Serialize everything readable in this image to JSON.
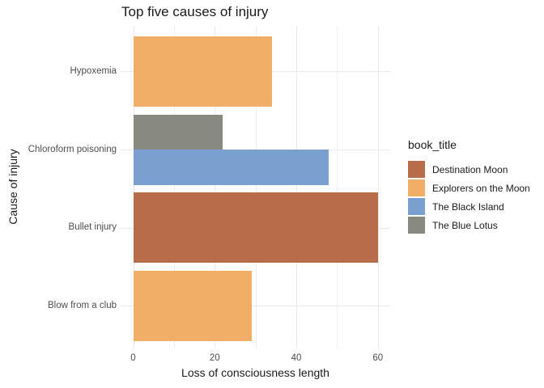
{
  "chart_data": {
    "type": "bar",
    "orientation": "horizontal",
    "title": "Top five causes of injury",
    "xlabel": "Loss of consciousness length",
    "ylabel": "Cause of injury",
    "grid": true,
    "xlim": [
      -3,
      63
    ],
    "x_major_ticks": [
      0,
      20,
      40,
      60
    ],
    "x_minor_gridlines": [
      10,
      30,
      50
    ],
    "categories": [
      "Hypoxemia",
      "Chloroform poisoning",
      "Bullet injury",
      "Blow from a club"
    ],
    "bars": [
      {
        "category": "Hypoxemia",
        "series": "Explorers on the Moon",
        "value": 34
      },
      {
        "category": "Chloroform poisoning",
        "series": "The Blue Lotus",
        "value": 22
      },
      {
        "category": "Chloroform poisoning",
        "series": "The Black Island",
        "value": 48
      },
      {
        "category": "Bullet injury",
        "series": "Destination Moon",
        "value": 60
      },
      {
        "category": "Blow from a club",
        "series": "Explorers on the Moon",
        "value": 29
      }
    ],
    "legend_title": "book_title",
    "legend_position": "right",
    "legend": [
      {
        "label": "Destination Moon",
        "color": "#B76D4A"
      },
      {
        "label": "Explorers on the Moon",
        "color": "#F0AE66"
      },
      {
        "label": "The Black Island",
        "color": "#7AA0D0"
      },
      {
        "label": "The Blue Lotus",
        "color": "#888A80"
      }
    ],
    "colors": {
      "background": "#FFFFFF",
      "grid_major": "#E9E9E9",
      "grid_minor": "#EFEFEF",
      "tick_label": "#4D4D4D",
      "text": "#1A1A1A"
    }
  }
}
